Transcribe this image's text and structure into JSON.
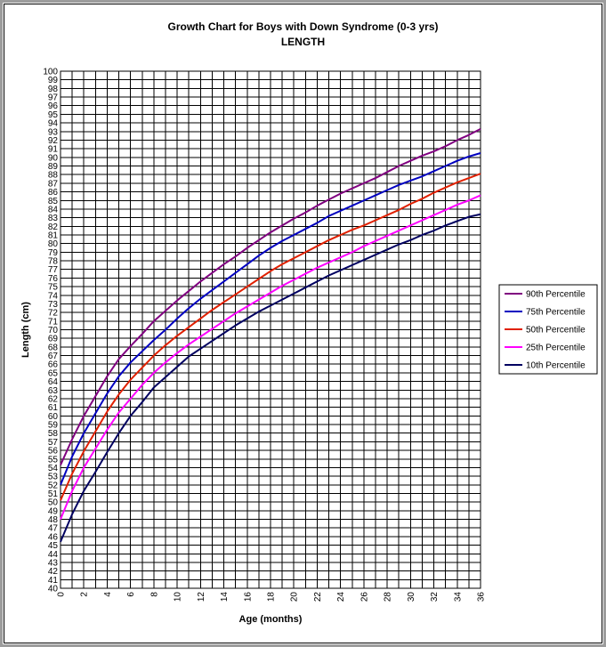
{
  "chart_data": {
    "type": "line",
    "title": "Growth Chart for Boys with Down Syndrome  (0-3 yrs)",
    "subtitle": "LENGTH",
    "xlabel": "Age (months)",
    "ylabel": "Length (cm)",
    "xlim": [
      0,
      36
    ],
    "ylim": [
      40,
      100
    ],
    "x_ticks": [
      0,
      2,
      4,
      6,
      8,
      10,
      12,
      14,
      16,
      18,
      20,
      22,
      24,
      26,
      28,
      30,
      32,
      34,
      36
    ],
    "y_ticks": [
      40,
      41,
      42,
      43,
      44,
      45,
      46,
      47,
      48,
      49,
      50,
      51,
      52,
      53,
      54,
      55,
      56,
      57,
      58,
      59,
      60,
      61,
      62,
      63,
      64,
      65,
      66,
      67,
      68,
      69,
      70,
      71,
      72,
      73,
      74,
      75,
      76,
      77,
      78,
      79,
      80,
      81,
      82,
      83,
      84,
      85,
      86,
      87,
      88,
      89,
      90,
      91,
      92,
      93,
      94,
      95,
      96,
      97,
      98,
      99,
      100
    ],
    "grid": true,
    "legend_position": "right",
    "x": [
      0,
      1,
      2,
      3,
      4,
      5,
      6,
      7,
      8,
      9,
      10,
      11,
      12,
      13,
      14,
      15,
      16,
      17,
      18,
      19,
      20,
      21,
      22,
      23,
      24,
      25,
      26,
      27,
      28,
      29,
      30,
      31,
      32,
      33,
      34,
      35,
      36
    ],
    "series": [
      {
        "name": "90th Percentile",
        "color": "#800080",
        "values": [
          54.3,
          57.3,
          60.0,
          62.3,
          64.6,
          66.6,
          68.1,
          69.5,
          71.0,
          72.2,
          73.4,
          74.5,
          75.6,
          76.6,
          77.6,
          78.5,
          79.5,
          80.4,
          81.3,
          82.1,
          82.9,
          83.6,
          84.4,
          85.1,
          85.8,
          86.4,
          87.0,
          87.6,
          88.3,
          89.0,
          89.6,
          90.2,
          90.7,
          91.3,
          92.0,
          92.6,
          93.3
        ]
      },
      {
        "name": "75th Percentile",
        "color": "#0000c0",
        "values": [
          52.0,
          55.3,
          58.0,
          60.3,
          62.6,
          64.6,
          66.2,
          67.5,
          68.8,
          70.0,
          71.3,
          72.5,
          73.6,
          74.6,
          75.6,
          76.6,
          77.6,
          78.6,
          79.5,
          80.3,
          81.0,
          81.7,
          82.4,
          83.2,
          83.8,
          84.4,
          85.0,
          85.6,
          86.2,
          86.8,
          87.3,
          87.8,
          88.4,
          89.0,
          89.6,
          90.1,
          90.5
        ]
      },
      {
        "name": "50th Percentile",
        "color": "#e02000",
        "values": [
          50.2,
          53.3,
          55.9,
          58.2,
          60.5,
          62.5,
          64.2,
          65.6,
          67.0,
          68.2,
          69.3,
          70.3,
          71.3,
          72.3,
          73.2,
          74.1,
          75.0,
          75.9,
          76.8,
          77.6,
          78.3,
          79.0,
          79.7,
          80.4,
          81.0,
          81.6,
          82.1,
          82.7,
          83.3,
          83.9,
          84.6,
          85.2,
          85.9,
          86.5,
          87.1,
          87.6,
          88.1
        ]
      },
      {
        "name": "25th Percentile",
        "color": "#ff00ff",
        "values": [
          48.0,
          51.3,
          54.0,
          56.2,
          58.4,
          60.4,
          62.0,
          63.6,
          65.0,
          66.2,
          67.3,
          68.3,
          69.2,
          70.1,
          71.0,
          71.9,
          72.7,
          73.5,
          74.3,
          75.1,
          75.8,
          76.5,
          77.2,
          77.8,
          78.4,
          79.0,
          79.7,
          80.3,
          80.9,
          81.5,
          82.1,
          82.7,
          83.3,
          83.9,
          84.5,
          85.0,
          85.6
        ]
      },
      {
        "name": "10th Percentile",
        "color": "#000060",
        "values": [
          45.4,
          48.6,
          51.3,
          53.5,
          55.8,
          58.0,
          60.0,
          61.6,
          63.3,
          64.5,
          65.7,
          66.9,
          67.8,
          68.7,
          69.6,
          70.5,
          71.3,
          72.1,
          72.8,
          73.5,
          74.2,
          74.9,
          75.6,
          76.3,
          76.9,
          77.5,
          78.1,
          78.7,
          79.3,
          79.9,
          80.4,
          81.0,
          81.5,
          82.1,
          82.6,
          83.1,
          83.4
        ]
      }
    ],
    "legend_order": [
      "90th Percentile",
      "75th Percentile",
      "50th Percentile",
      "25th Percentile",
      "10th Percentile"
    ]
  }
}
